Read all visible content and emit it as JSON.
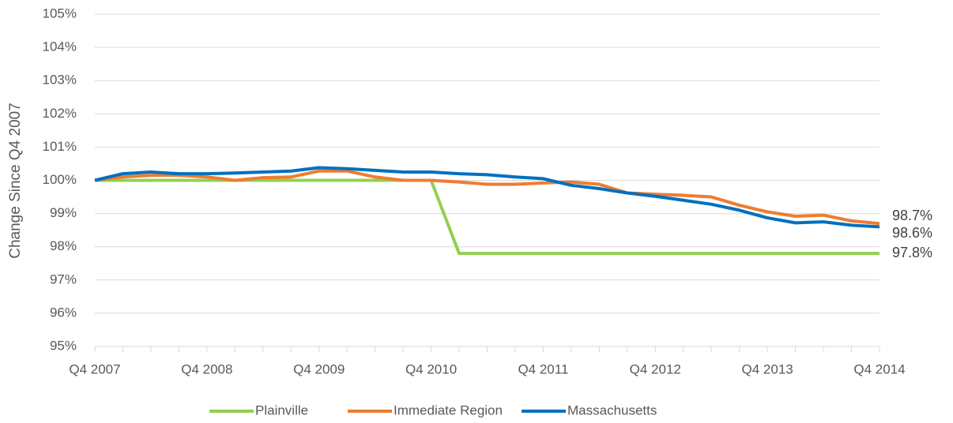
{
  "chart_data": {
    "type": "line",
    "y_label": "Change Since Q4 2007",
    "categories": [
      "Q4 2007",
      null,
      null,
      null,
      "Q4 2008",
      null,
      null,
      null,
      "Q4 2009",
      null,
      null,
      null,
      "Q4 2010",
      null,
      null,
      null,
      "Q4 2011",
      null,
      null,
      null,
      "Q4 2012",
      null,
      null,
      null,
      "Q4 2013",
      null,
      null,
      null,
      "Q4 2014"
    ],
    "ylim": [
      95,
      105
    ],
    "yticks": [
      {
        "value": 95,
        "label": "95%"
      },
      {
        "value": 96,
        "label": "96%"
      },
      {
        "value": 97,
        "label": "97%"
      },
      {
        "value": 98,
        "label": "98%"
      },
      {
        "value": 99,
        "label": "99%"
      },
      {
        "value": 100,
        "label": "100%"
      },
      {
        "value": 101,
        "label": "101%"
      },
      {
        "value": 102,
        "label": "102%"
      },
      {
        "value": 103,
        "label": "103%"
      },
      {
        "value": 104,
        "label": "104%"
      },
      {
        "value": 105,
        "label": "105%"
      }
    ],
    "grid": true,
    "legend": "bottom",
    "series": [
      {
        "name": "Plainville",
        "color": "#92d050",
        "values": [
          100,
          100,
          100,
          100,
          100,
          100,
          100,
          100,
          100,
          100,
          100,
          100,
          100,
          97.8,
          97.8,
          97.8,
          97.8,
          97.8,
          97.8,
          97.8,
          97.8,
          97.8,
          97.8,
          97.8,
          97.8,
          97.8,
          97.8,
          97.8,
          97.8
        ],
        "value_labels": [
          null,
          null,
          null,
          null,
          null,
          null,
          null,
          null,
          null,
          null,
          null,
          null,
          null,
          null,
          null,
          null,
          null,
          null,
          null,
          null,
          null,
          null,
          null,
          null,
          null,
          null,
          null,
          null,
          "97.8%"
        ]
      },
      {
        "name": "Immediate Region",
        "color": "#ed7d31",
        "values": [
          100,
          100.1,
          100.15,
          100.15,
          100.1,
          100.0,
          100.08,
          100.1,
          100.28,
          100.28,
          100.1,
          100.0,
          100.0,
          99.95,
          99.88,
          99.88,
          99.92,
          99.95,
          99.88,
          99.62,
          99.58,
          99.55,
          99.5,
          99.25,
          99.05,
          98.92,
          98.95,
          98.78,
          98.7
        ],
        "value_labels": [
          null,
          null,
          null,
          null,
          null,
          null,
          null,
          null,
          null,
          null,
          null,
          null,
          null,
          null,
          null,
          null,
          null,
          null,
          null,
          null,
          null,
          null,
          null,
          null,
          null,
          null,
          null,
          null,
          "98.7%"
        ]
      },
      {
        "name": "Massachusetts",
        "color": "#0070c0",
        "values": [
          100,
          100.2,
          100.25,
          100.2,
          100.2,
          100.22,
          100.25,
          100.28,
          100.38,
          100.35,
          100.3,
          100.25,
          100.25,
          100.2,
          100.17,
          100.1,
          100.05,
          99.85,
          99.75,
          99.62,
          99.52,
          99.4,
          99.28,
          99.1,
          98.87,
          98.72,
          98.75,
          98.65,
          98.6
        ],
        "value_labels": [
          null,
          null,
          null,
          null,
          null,
          null,
          null,
          null,
          null,
          null,
          null,
          null,
          null,
          null,
          null,
          null,
          null,
          null,
          null,
          null,
          null,
          null,
          null,
          null,
          null,
          null,
          null,
          null,
          "98.6%"
        ]
      }
    ]
  }
}
